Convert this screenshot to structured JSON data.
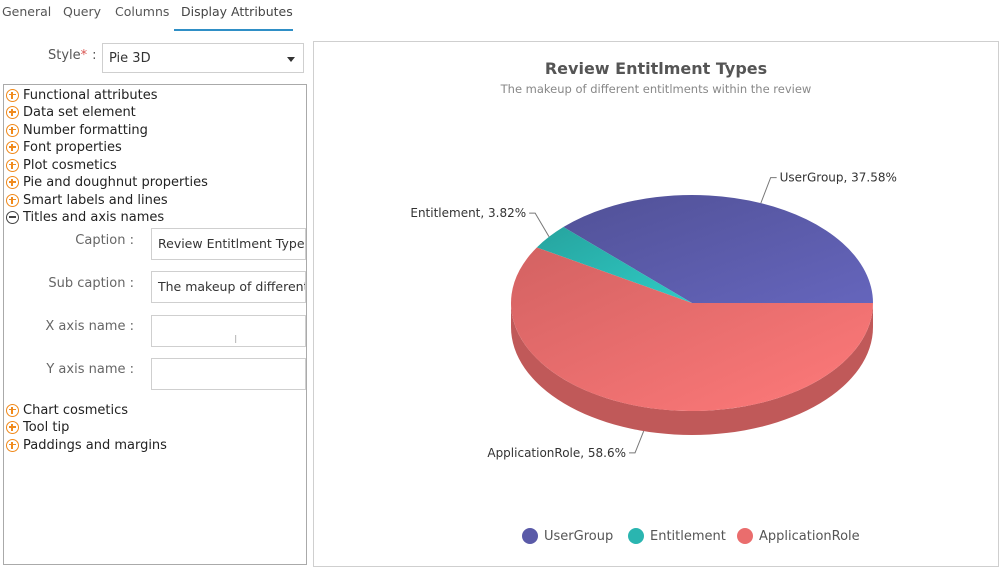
{
  "tabs": [
    {
      "label": "General"
    },
    {
      "label": "Query"
    },
    {
      "label": "Columns"
    },
    {
      "label": "Display Attributes",
      "active": true
    }
  ],
  "style": {
    "label": "Style",
    "required_mark": "*",
    "colon": ":",
    "value": "Pie 3D"
  },
  "sections_top": [
    {
      "label": "Functional attributes",
      "state": "collapsed"
    },
    {
      "label": "Data set element",
      "state": "collapsed"
    },
    {
      "label": "Number formatting",
      "state": "collapsed"
    },
    {
      "label": "Font properties",
      "state": "collapsed"
    },
    {
      "label": "Plot cosmetics",
      "state": "collapsed"
    },
    {
      "label": "Pie and doughnut properties",
      "state": "collapsed"
    },
    {
      "label": "Smart labels and lines",
      "state": "collapsed"
    },
    {
      "label": "Titles and axis names",
      "state": "expanded"
    }
  ],
  "fields": [
    {
      "label": "Caption :",
      "value": "Review Entitlment Types"
    },
    {
      "label": "Sub caption :",
      "value": "The makeup of different entitlments within the review"
    },
    {
      "label": "X axis name :",
      "value": ""
    },
    {
      "label": "Y axis name :",
      "value": ""
    }
  ],
  "sections_bottom": [
    {
      "label": "Chart cosmetics",
      "state": "collapsed"
    },
    {
      "label": "Tool tip",
      "state": "collapsed"
    },
    {
      "label": "Paddings and margins",
      "state": "collapsed"
    }
  ],
  "colors": {
    "accent": "#2f8fc6",
    "expand_icon": "#f08a1c"
  },
  "chart_data": {
    "type": "pie",
    "style": "3d",
    "title": "Review Entitlment Types",
    "subtitle": "The makeup of different entitlments within the review",
    "slices": [
      {
        "label": "UserGroup",
        "value": 37.58,
        "data_label": "UserGroup, 37.58%",
        "color": "#5a5aa8"
      },
      {
        "label": "Entitlement",
        "value": 3.82,
        "data_label": "Entitlement, 3.82%",
        "color": "#2ab5b0"
      },
      {
        "label": "ApplicationRole",
        "value": 58.6,
        "data_label": "ApplicationRole, 58.6%",
        "color": "#ea6d6d"
      }
    ],
    "legend": {
      "position": "bottom",
      "items": [
        "UserGroup",
        "Entitlement",
        "ApplicationRole"
      ]
    }
  }
}
